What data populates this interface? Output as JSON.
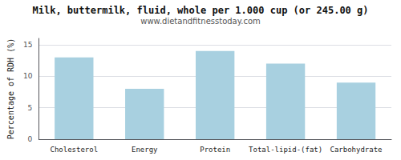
{
  "chart_data": {
    "type": "bar",
    "title": "Milk, buttermilk, fluid, whole per 1.000 cup (or 245.00 g)",
    "subtitle": "www.dietandfitnesstoday.com",
    "categories": [
      "Cholesterol",
      "Energy",
      "Protein",
      "Total-lipid-(fat)",
      "Carbohydrate"
    ],
    "values": [
      13,
      8,
      14,
      12,
      9
    ],
    "color": "#a8d0e0",
    "ylabel": "Percentage of RDH (%)",
    "ylim": [
      0,
      16
    ],
    "yticks": [
      0,
      5,
      10,
      15
    ],
    "grid": true
  }
}
